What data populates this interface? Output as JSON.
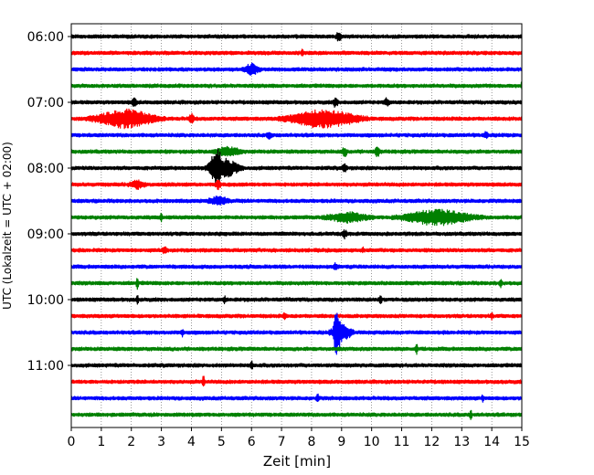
{
  "chart_data": {
    "type": "line",
    "xlabel": "Zeit  [min]",
    "ylabel": "UTC (Lokalzeit = UTC + 02:00)",
    "xlim": [
      0,
      15
    ],
    "x_ticks": [
      0,
      1,
      2,
      3,
      4,
      5,
      6,
      7,
      8,
      9,
      10,
      11,
      12,
      13,
      14,
      15
    ],
    "y_tick_labels": [
      "06:00",
      "07:00",
      "08:00",
      "09:00",
      "10:00",
      "11:00"
    ],
    "grid": "vertical dotted at each minute",
    "trace_interval_minutes": 15,
    "series_colors": [
      "#000000",
      "#ff0000",
      "#0000ff",
      "#008000"
    ],
    "rows": [
      {
        "time": "06:00",
        "color": "#000000",
        "events": [
          {
            "x": 8.9,
            "amp": 0.5,
            "dur": 0.1
          }
        ]
      },
      {
        "time": "06:15",
        "color": "#ff0000",
        "events": [
          {
            "x": 7.7,
            "amp": 0.3,
            "dur": 0.05
          }
        ]
      },
      {
        "time": "06:30",
        "color": "#0000ff",
        "events": [
          {
            "x": 6.0,
            "amp": 0.6,
            "dur": 0.3
          }
        ]
      },
      {
        "time": "06:45",
        "color": "#008000",
        "events": [
          {
            "x": 15.0,
            "amp": 0.3,
            "dur": 0.05
          }
        ]
      },
      {
        "time": "07:00",
        "color": "#000000",
        "events": [
          {
            "x": 2.1,
            "amp": 0.4,
            "dur": 0.1
          },
          {
            "x": 8.8,
            "amp": 0.45,
            "dur": 0.1
          },
          {
            "x": 10.5,
            "amp": 0.4,
            "dur": 0.1
          }
        ]
      },
      {
        "time": "07:15",
        "color": "#ff0000",
        "events": [
          {
            "x": 1.8,
            "amp": 1.0,
            "dur": 1.2
          },
          {
            "x": 4.0,
            "amp": 0.5,
            "dur": 0.1
          },
          {
            "x": 8.4,
            "amp": 1.0,
            "dur": 1.4
          }
        ]
      },
      {
        "time": "07:30",
        "color": "#0000ff",
        "events": [
          {
            "x": 6.6,
            "amp": 0.3,
            "dur": 0.1
          },
          {
            "x": 13.8,
            "amp": 0.3,
            "dur": 0.1
          }
        ]
      },
      {
        "time": "07:45",
        "color": "#008000",
        "events": [
          {
            "x": 5.2,
            "amp": 0.5,
            "dur": 0.5
          },
          {
            "x": 9.1,
            "amp": 0.45,
            "dur": 0.1
          },
          {
            "x": 10.2,
            "amp": 0.55,
            "dur": 0.1
          }
        ]
      },
      {
        "time": "08:00",
        "color": "#000000",
        "events": [
          {
            "x": 4.85,
            "amp": 2.2,
            "dur": 0.3
          },
          {
            "x": 5.1,
            "amp": 1.0,
            "dur": 0.6
          },
          {
            "x": 9.1,
            "amp": 0.4,
            "dur": 0.1
          }
        ]
      },
      {
        "time": "08:15",
        "color": "#ff0000",
        "events": [
          {
            "x": 2.2,
            "amp": 0.4,
            "dur": 0.3
          },
          {
            "x": 4.9,
            "amp": 0.5,
            "dur": 0.1
          }
        ]
      },
      {
        "time": "08:30",
        "color": "#0000ff",
        "events": [
          {
            "x": 4.9,
            "amp": 0.4,
            "dur": 0.4
          }
        ]
      },
      {
        "time": "08:45",
        "color": "#008000",
        "events": [
          {
            "x": 3.0,
            "amp": 0.4,
            "dur": 0.05
          },
          {
            "x": 9.2,
            "amp": 0.5,
            "dur": 0.8
          },
          {
            "x": 12.2,
            "amp": 0.8,
            "dur": 1.4
          }
        ]
      },
      {
        "time": "09:00",
        "color": "#000000",
        "events": [
          {
            "x": 9.1,
            "amp": 0.4,
            "dur": 0.1
          }
        ]
      },
      {
        "time": "09:15",
        "color": "#ff0000",
        "events": [
          {
            "x": 3.1,
            "amp": 0.3,
            "dur": 0.1
          },
          {
            "x": 9.7,
            "amp": 0.3,
            "dur": 0.05
          }
        ]
      },
      {
        "time": "09:30",
        "color": "#0000ff",
        "events": [
          {
            "x": 8.8,
            "amp": 0.3,
            "dur": 0.1
          }
        ]
      },
      {
        "time": "09:45",
        "color": "#008000",
        "events": [
          {
            "x": 2.2,
            "amp": 0.6,
            "dur": 0.05
          },
          {
            "x": 14.3,
            "amp": 0.5,
            "dur": 0.05
          }
        ]
      },
      {
        "time": "10:00",
        "color": "#000000",
        "events": [
          {
            "x": 2.2,
            "amp": 0.4,
            "dur": 0.05
          },
          {
            "x": 5.1,
            "amp": 0.4,
            "dur": 0.05
          },
          {
            "x": 10.3,
            "amp": 0.5,
            "dur": 0.05
          }
        ]
      },
      {
        "time": "10:15",
        "color": "#ff0000",
        "events": [
          {
            "x": 7.1,
            "amp": 0.3,
            "dur": 0.05
          },
          {
            "x": 14.0,
            "amp": 0.3,
            "dur": 0.05
          }
        ]
      },
      {
        "time": "10:30",
        "color": "#0000ff",
        "events": [
          {
            "x": 8.85,
            "amp": 3.0,
            "dur": 0.15
          },
          {
            "x": 9.0,
            "amp": 1.0,
            "dur": 0.4
          },
          {
            "x": 3.7,
            "amp": 0.4,
            "dur": 0.05
          }
        ]
      },
      {
        "time": "10:45",
        "color": "#008000",
        "events": [
          {
            "x": 11.5,
            "amp": 0.6,
            "dur": 0.05
          }
        ]
      },
      {
        "time": "11:00",
        "color": "#000000",
        "events": [
          {
            "x": 6.0,
            "amp": 0.5,
            "dur": 0.05
          }
        ]
      },
      {
        "time": "11:15",
        "color": "#ff0000",
        "events": [
          {
            "x": 4.4,
            "amp": 0.6,
            "dur": 0.05
          }
        ]
      },
      {
        "time": "11:30",
        "color": "#0000ff",
        "events": [
          {
            "x": 8.2,
            "amp": 0.4,
            "dur": 0.05
          },
          {
            "x": 13.7,
            "amp": 0.3,
            "dur": 0.05
          }
        ]
      },
      {
        "time": "11:45",
        "color": "#008000",
        "events": [
          {
            "x": 13.3,
            "amp": 0.5,
            "dur": 0.05
          }
        ]
      }
    ]
  }
}
